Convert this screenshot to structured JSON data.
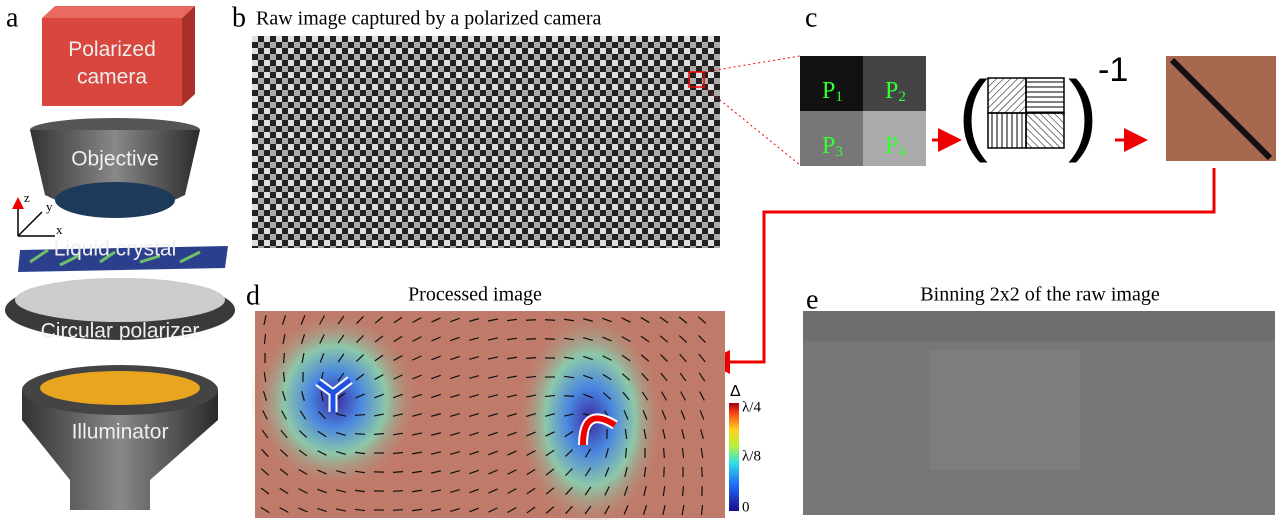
{
  "panels": {
    "a": "a",
    "b": "b",
    "c": "c",
    "d": "d",
    "e": "e"
  },
  "setup": {
    "camera": "Polarized camera",
    "objective": "Objective",
    "sample": "Liquid crystal",
    "polarizer": "Circular polarizer",
    "illuminator": "Illuminator",
    "axes": {
      "z": "z",
      "y": "y",
      "x": "x"
    }
  },
  "raw": {
    "title": "Raw image captured by a polarized camera"
  },
  "superpixel": {
    "labels": [
      {
        "main": "P",
        "sub": "1"
      },
      {
        "main": "P",
        "sub": "2"
      },
      {
        "main": "P",
        "sub": "3"
      },
      {
        "main": "P",
        "sub": "4"
      }
    ],
    "exponent": "-1"
  },
  "processed": {
    "title": "Processed image",
    "colorbar": {
      "symbol": "Δ",
      "top": "λ/4",
      "middle": "λ/8",
      "bottom": "0"
    }
  },
  "binning": {
    "title": "Binning 2x2 of the raw image"
  }
}
